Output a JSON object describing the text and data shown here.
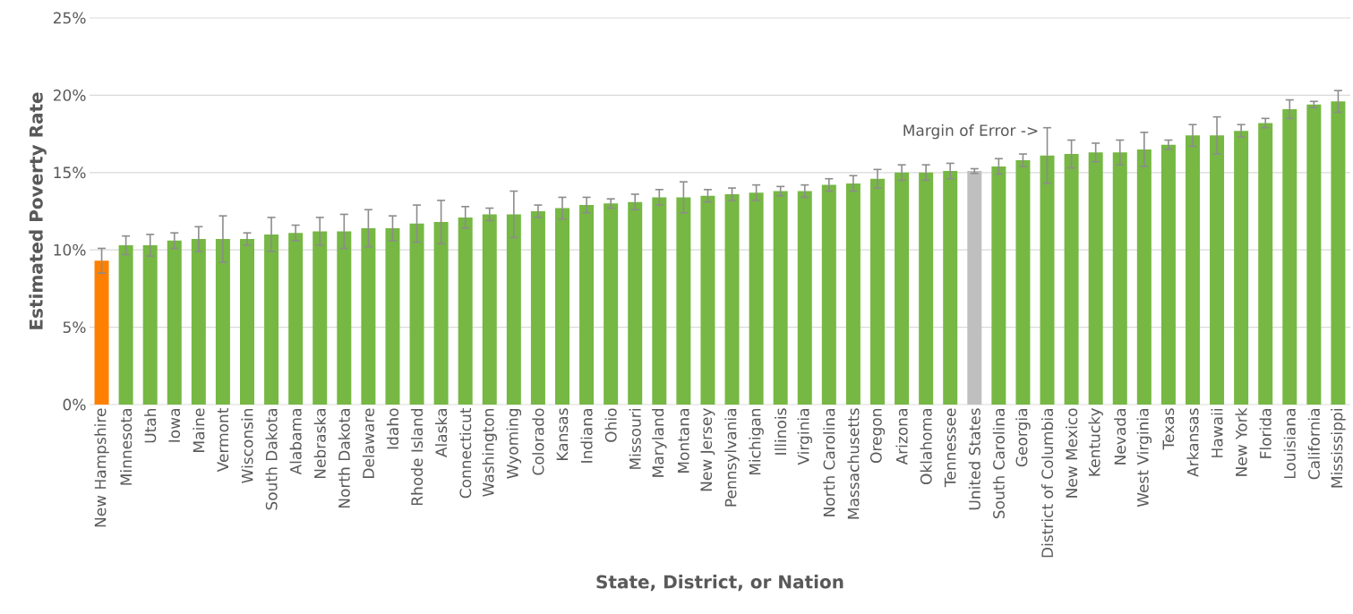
{
  "chart_data": {
    "type": "bar",
    "xlabel": "State, District, or Nation",
    "ylabel": "Estimated Poverty Rate",
    "categories": [
      "New Hampshire",
      "Minnesota",
      "Utah",
      "Iowa",
      "Maine",
      "Vermont",
      "Wisconsin",
      "South Dakota",
      "Alabama",
      "Nebraska",
      "North Dakota",
      "Delaware",
      "Idaho",
      "Rhode Island",
      "Alaska",
      "Connecticut",
      "Washington",
      "Wyoming",
      "Colorado",
      "Kansas",
      "Indiana",
      "Ohio",
      "Missouri",
      "Maryland",
      "Montana",
      "New Jersey",
      "Pennsylvania",
      "Michigan",
      "Illinois",
      "Virginia",
      "North Carolina",
      "Massachusetts",
      "Oregon",
      "Arizona",
      "Oklahoma",
      "Tennessee",
      "United States",
      "South Carolina",
      "Georgia",
      "District of Columbia",
      "New Mexico",
      "Kentucky",
      "Nevada",
      "West Virginia",
      "Texas",
      "Arkansas",
      "Hawaii",
      "New York",
      "Florida",
      "Louisiana",
      "California",
      "Mississippi"
    ],
    "values": [
      9.3,
      10.3,
      10.3,
      10.6,
      10.7,
      10.7,
      10.7,
      11.0,
      11.1,
      11.2,
      11.2,
      11.4,
      11.4,
      11.7,
      11.8,
      12.1,
      12.3,
      12.3,
      12.5,
      12.7,
      12.9,
      13.0,
      13.1,
      13.4,
      13.4,
      13.5,
      13.6,
      13.7,
      13.8,
      13.8,
      14.2,
      14.3,
      14.6,
      15.0,
      15.0,
      15.1,
      15.1,
      15.4,
      15.8,
      16.1,
      16.2,
      16.3,
      16.3,
      16.5,
      16.8,
      17.4,
      17.4,
      17.7,
      18.2,
      19.1,
      19.4,
      19.6
    ],
    "errors": [
      0.8,
      0.6,
      0.7,
      0.5,
      0.8,
      1.5,
      0.4,
      1.1,
      0.5,
      0.9,
      1.1,
      1.2,
      0.8,
      1.2,
      1.4,
      0.7,
      0.4,
      1.5,
      0.4,
      0.7,
      0.5,
      0.3,
      0.5,
      0.5,
      1.0,
      0.4,
      0.4,
      0.5,
      0.3,
      0.4,
      0.4,
      0.5,
      0.6,
      0.5,
      0.5,
      0.5,
      0.15,
      0.5,
      0.4,
      1.8,
      0.9,
      0.6,
      0.8,
      1.1,
      0.3,
      0.7,
      1.2,
      0.4,
      0.3,
      0.6,
      0.2,
      0.7
    ],
    "colors": [
      "#ff8000",
      "#76b843",
      "#76b843",
      "#76b843",
      "#76b843",
      "#76b843",
      "#76b843",
      "#76b843",
      "#76b843",
      "#76b843",
      "#76b843",
      "#76b843",
      "#76b843",
      "#76b843",
      "#76b843",
      "#76b843",
      "#76b843",
      "#76b843",
      "#76b843",
      "#76b843",
      "#76b843",
      "#76b843",
      "#76b843",
      "#76b843",
      "#76b843",
      "#76b843",
      "#76b843",
      "#76b843",
      "#76b843",
      "#76b843",
      "#76b843",
      "#76b843",
      "#76b843",
      "#76b843",
      "#76b843",
      "#76b843",
      "#bfbfbf",
      "#76b843",
      "#76b843",
      "#76b843",
      "#76b843",
      "#76b843",
      "#76b843",
      "#76b843",
      "#76b843",
      "#76b843",
      "#76b843",
      "#76b843",
      "#76b843",
      "#76b843",
      "#76b843",
      "#76b843"
    ],
    "ylim": [
      0,
      25
    ],
    "yticks": [
      {
        "value": 0,
        "label": "0%"
      },
      {
        "value": 5,
        "label": "5%"
      },
      {
        "value": 10,
        "label": "10%"
      },
      {
        "value": 15,
        "label": "15%"
      },
      {
        "value": 20,
        "label": "20%"
      },
      {
        "value": 25,
        "label": "25%"
      }
    ],
    "grid": "y",
    "annotations": [
      {
        "text": "Margin of Error ->",
        "x": "District of Columbia",
        "y": 17.1
      }
    ]
  }
}
